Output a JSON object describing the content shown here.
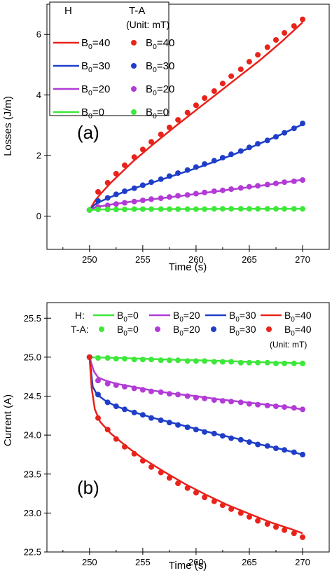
{
  "chart_data": [
    {
      "type": "line",
      "panel_label": "(a)",
      "xlabel": "Time (s)",
      "ylabel": "Losses (J/m)",
      "xlim": [
        246,
        272.5
      ],
      "ylim": [
        -1.1,
        7.0
      ],
      "xticks": [
        "250",
        "255",
        "260",
        "265",
        "270"
      ],
      "xtick_values": [
        250,
        255,
        260,
        265,
        270
      ],
      "yticks": [
        "0",
        "2",
        "4",
        "6"
      ],
      "ytick_values": [
        0,
        2,
        4,
        6
      ],
      "grid": false,
      "legend": {
        "placement": "top-left",
        "header_h": "H",
        "header_ta": "T-A",
        "unit_note": "(Unit: mT)",
        "entries": [
          {
            "base": "B",
            "sub": "0",
            "value": "=40"
          },
          {
            "base": "B",
            "sub": "0",
            "value": "=30"
          },
          {
            "base": "B",
            "sub": "0",
            "value": "=20"
          },
          {
            "base": "B",
            "sub": "0",
            "value": "=0"
          }
        ]
      },
      "series": [
        {
          "key": "B0=40",
          "color": "#e8231b",
          "line_x": [
            250,
            250.5,
            251,
            252,
            254,
            256,
            258,
            260,
            262,
            264,
            266,
            268,
            270
          ],
          "line_y": [
            0.2,
            0.5,
            0.72,
            1.1,
            1.78,
            2.38,
            2.95,
            3.5,
            4.05,
            4.6,
            5.15,
            5.75,
            6.4
          ],
          "marker_x": [
            250,
            250.8,
            251.7,
            252.5,
            253.3,
            254.2,
            255,
            255.8,
            256.7,
            257.5,
            258.3,
            259.2,
            260,
            260.8,
            261.7,
            262.5,
            263.3,
            264.2,
            265,
            265.8,
            266.7,
            267.5,
            268.3,
            269.2,
            270
          ],
          "marker_y": [
            0.2,
            0.8,
            1.1,
            1.4,
            1.68,
            1.95,
            2.2,
            2.45,
            2.7,
            2.93,
            3.18,
            3.42,
            3.66,
            3.9,
            4.13,
            4.38,
            4.62,
            4.85,
            5.1,
            5.33,
            5.58,
            5.82,
            6.05,
            6.28,
            6.5
          ]
        },
        {
          "key": "B0=30",
          "color": "#1f3ec8",
          "line_x": [
            250,
            250.5,
            251,
            252,
            254,
            256,
            258,
            260,
            262,
            264,
            266,
            268,
            270
          ],
          "line_y": [
            0.2,
            0.38,
            0.48,
            0.63,
            0.9,
            1.12,
            1.35,
            1.58,
            1.83,
            2.1,
            2.4,
            2.7,
            3.03
          ],
          "marker_x": [
            250,
            250.8,
            251.7,
            252.5,
            253.3,
            254.2,
            255,
            255.8,
            256.7,
            257.5,
            258.3,
            259.2,
            260,
            260.8,
            261.7,
            262.5,
            263.3,
            264.2,
            265,
            265.8,
            266.7,
            267.5,
            268.3,
            269.2,
            270
          ],
          "marker_y": [
            0.2,
            0.5,
            0.6,
            0.72,
            0.82,
            0.92,
            1.02,
            1.12,
            1.22,
            1.32,
            1.42,
            1.52,
            1.62,
            1.72,
            1.83,
            1.93,
            2.04,
            2.15,
            2.27,
            2.39,
            2.5,
            2.62,
            2.75,
            2.9,
            3.06
          ]
        },
        {
          "key": "B0=20",
          "color": "#b23bd6",
          "line_x": [
            250,
            250.5,
            251,
            252,
            254,
            256,
            258,
            260,
            262,
            264,
            266,
            268,
            270
          ],
          "line_y": [
            0.2,
            0.28,
            0.32,
            0.38,
            0.48,
            0.56,
            0.64,
            0.73,
            0.82,
            0.91,
            1.0,
            1.1,
            1.2
          ],
          "marker_x": [
            250,
            250.8,
            251.7,
            252.5,
            253.3,
            254.2,
            255,
            255.8,
            256.7,
            257.5,
            258.3,
            259.2,
            260,
            260.8,
            261.7,
            262.5,
            263.3,
            264.2,
            265,
            265.8,
            266.7,
            267.5,
            268.3,
            269.2,
            270
          ],
          "marker_y": [
            0.2,
            0.3,
            0.35,
            0.4,
            0.44,
            0.48,
            0.52,
            0.56,
            0.59,
            0.63,
            0.67,
            0.7,
            0.74,
            0.78,
            0.82,
            0.85,
            0.89,
            0.93,
            0.97,
            1.0,
            1.04,
            1.08,
            1.12,
            1.15,
            1.19
          ]
        },
        {
          "key": "B0=0",
          "color": "#3ee83a",
          "line_x": [
            250,
            251,
            255,
            260,
            265,
            270
          ],
          "line_y": [
            0.2,
            0.22,
            0.23,
            0.23,
            0.24,
            0.24
          ],
          "marker_x": [
            250,
            250.8,
            251.7,
            252.5,
            253.3,
            254.2,
            255,
            255.8,
            256.7,
            257.5,
            258.3,
            259.2,
            260,
            260.8,
            261.7,
            262.5,
            263.3,
            264.2,
            265,
            265.8,
            266.7,
            267.5,
            268.3,
            269.2,
            270
          ],
          "marker_y": [
            0.2,
            0.22,
            0.22,
            0.22,
            0.22,
            0.23,
            0.23,
            0.23,
            0.23,
            0.23,
            0.23,
            0.23,
            0.23,
            0.23,
            0.24,
            0.24,
            0.24,
            0.24,
            0.24,
            0.24,
            0.24,
            0.24,
            0.24,
            0.24,
            0.24
          ]
        }
      ]
    },
    {
      "type": "line",
      "panel_label": "(b)",
      "xlabel": "Time (s)",
      "ylabel": "Current (A)",
      "xlim": [
        246,
        272.5
      ],
      "ylim": [
        22.5,
        25.7
      ],
      "xticks": [
        "250",
        "255",
        "260",
        "265",
        "270"
      ],
      "xtick_values": [
        250,
        255,
        260,
        265,
        270
      ],
      "yticks": [
        "22.5",
        "23.0",
        "23.5",
        "24.0",
        "24.5",
        "25.0",
        "25.5"
      ],
      "ytick_values": [
        22.5,
        23.0,
        23.5,
        24.0,
        24.5,
        25.0,
        25.5
      ],
      "grid": false,
      "legend": {
        "placement": "top",
        "row_h_label": "H:",
        "row_ta_label": "T-A:",
        "unit_note": "(Unit: mT)",
        "entries": [
          {
            "base": "B",
            "sub": "0",
            "value": "=0"
          },
          {
            "base": "B",
            "sub": "0",
            "value": "=20"
          },
          {
            "base": "B",
            "sub": "0",
            "value": "=30"
          },
          {
            "base": "B",
            "sub": "0",
            "value": "=40"
          }
        ]
      },
      "series": [
        {
          "key": "B0=0",
          "color": "#3ee83a",
          "line_x": [
            250,
            255,
            260,
            265,
            270
          ],
          "line_y": [
            25.0,
            24.98,
            24.96,
            24.94,
            24.92
          ],
          "marker_x": [
            250,
            250.8,
            251.7,
            252.5,
            253.3,
            254.2,
            255,
            255.8,
            256.7,
            257.5,
            258.3,
            259.2,
            260,
            260.8,
            261.7,
            262.5,
            263.3,
            264.2,
            265,
            265.8,
            266.7,
            267.5,
            268.3,
            269.2,
            270
          ],
          "marker_y": [
            25.0,
            24.99,
            24.99,
            24.98,
            24.98,
            24.97,
            24.97,
            24.97,
            24.96,
            24.96,
            24.96,
            24.95,
            24.95,
            24.95,
            24.94,
            24.94,
            24.94,
            24.93,
            24.93,
            24.93,
            24.93,
            24.92,
            24.92,
            24.92,
            24.92
          ]
        },
        {
          "key": "B0=20",
          "color": "#b23bd6",
          "line_x": [
            250,
            250.4,
            250.8,
            251.5,
            252.5,
            254,
            256,
            258,
            260,
            262,
            264,
            266,
            268,
            270
          ],
          "line_y": [
            25.0,
            24.82,
            24.74,
            24.7,
            24.66,
            24.62,
            24.57,
            24.53,
            24.5,
            24.46,
            24.43,
            24.4,
            24.37,
            24.33
          ],
          "marker_x": [
            250,
            250.8,
            251.7,
            252.5,
            253.3,
            254.2,
            255,
            255.8,
            256.7,
            257.5,
            258.3,
            259.2,
            260,
            260.8,
            261.7,
            262.5,
            263.3,
            264.2,
            265,
            265.8,
            266.7,
            267.5,
            268.3,
            269.2,
            270
          ],
          "marker_y": [
            25.0,
            24.7,
            24.66,
            24.64,
            24.62,
            24.6,
            24.58,
            24.56,
            24.55,
            24.53,
            24.52,
            24.5,
            24.48,
            24.47,
            24.45,
            24.44,
            24.43,
            24.42,
            24.4,
            24.39,
            24.38,
            24.37,
            24.36,
            24.35,
            24.33
          ]
        },
        {
          "key": "B0=30",
          "color": "#1f3ec8",
          "line_x": [
            250,
            250.3,
            250.7,
            251.5,
            252.5,
            254,
            256,
            258,
            260,
            262,
            264,
            266,
            268,
            270
          ],
          "line_y": [
            25.0,
            24.62,
            24.52,
            24.44,
            24.37,
            24.3,
            24.22,
            24.15,
            24.08,
            24.01,
            23.95,
            23.88,
            23.82,
            23.75
          ],
          "marker_x": [
            250,
            250.8,
            251.7,
            252.5,
            253.3,
            254.2,
            255,
            255.8,
            256.7,
            257.5,
            258.3,
            259.2,
            260,
            260.8,
            261.7,
            262.5,
            263.3,
            264.2,
            265,
            265.8,
            266.7,
            267.5,
            268.3,
            269.2,
            270
          ],
          "marker_y": [
            25.0,
            24.52,
            24.42,
            24.37,
            24.33,
            24.29,
            24.26,
            24.22,
            24.19,
            24.16,
            24.13,
            24.1,
            24.07,
            24.04,
            24.02,
            23.99,
            23.96,
            23.94,
            23.91,
            23.88,
            23.86,
            23.83,
            23.81,
            23.78,
            23.75
          ]
        },
        {
          "key": "B0=40",
          "color": "#e8231b",
          "line_x": [
            250,
            250.2,
            250.5,
            251,
            252,
            253.5,
            255,
            257,
            259,
            261,
            263,
            265,
            267,
            269,
            270
          ],
          "line_y": [
            25.0,
            24.6,
            24.33,
            24.17,
            24.02,
            23.85,
            23.7,
            23.53,
            23.37,
            23.23,
            23.1,
            22.99,
            22.88,
            22.79,
            22.74
          ],
          "marker_x": [
            250,
            250.8,
            251.7,
            252.5,
            253.3,
            254.2,
            255,
            255.8,
            256.7,
            257.5,
            258.3,
            259.2,
            260,
            260.8,
            261.7,
            262.5,
            263.3,
            264.2,
            265,
            265.8,
            266.7,
            267.5,
            268.3,
            269.2,
            270
          ],
          "marker_y": [
            25.0,
            24.22,
            24.07,
            23.95,
            23.85,
            23.76,
            23.67,
            23.59,
            23.52,
            23.45,
            23.38,
            23.32,
            23.26,
            23.2,
            23.15,
            23.1,
            23.05,
            23.0,
            22.95,
            22.9,
            22.86,
            22.82,
            22.78,
            22.74,
            22.69
          ]
        }
      ]
    }
  ]
}
